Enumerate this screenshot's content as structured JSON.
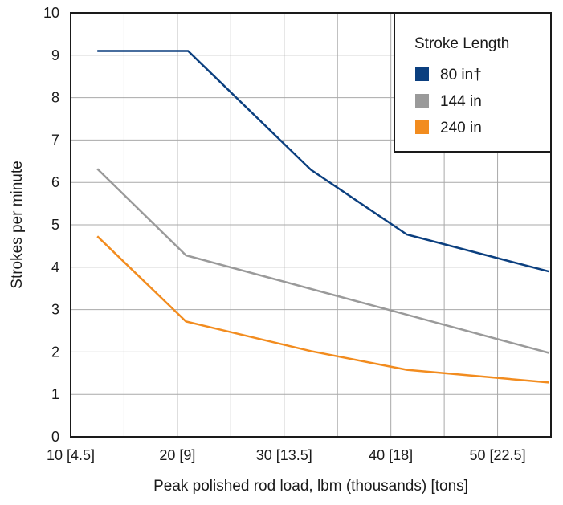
{
  "chart_data": {
    "type": "line",
    "title": "",
    "xlabel": "Peak polished rod load, lbm (thousands) [tons]",
    "ylabel": "Strokes per minute",
    "xlim": [
      10,
      55
    ],
    "ylim": [
      0,
      10
    ],
    "x_ticks": [
      {
        "value": 10,
        "label": "10 [4.5]"
      },
      {
        "value": 20,
        "label": "20 [9]"
      },
      {
        "value": 30,
        "label": "30 [13.5]"
      },
      {
        "value": 40,
        "label": "40 [18]"
      },
      {
        "value": 50,
        "label": "50 [22.5]"
      }
    ],
    "y_ticks": [
      0,
      1,
      2,
      3,
      4,
      5,
      6,
      7,
      8,
      9,
      10
    ],
    "grid": true,
    "legend": {
      "title": "Stroke Length",
      "position": "top-right"
    },
    "series": [
      {
        "name": "80 in†",
        "color": "#0b3f7f",
        "points": [
          [
            12.5,
            9.1
          ],
          [
            21,
            9.1
          ],
          [
            32.5,
            6.3
          ],
          [
            41.5,
            4.77
          ],
          [
            54.8,
            3.9
          ]
        ]
      },
      {
        "name": "144 in",
        "color": "#9a9a9a",
        "points": [
          [
            12.5,
            6.32
          ],
          [
            20.8,
            4.28
          ],
          [
            54.8,
            1.98
          ]
        ]
      },
      {
        "name": "240 in",
        "color": "#f28c1f",
        "points": [
          [
            12.5,
            4.73
          ],
          [
            20.8,
            2.72
          ],
          [
            32.5,
            2.02
          ],
          [
            41.5,
            1.58
          ],
          [
            54.8,
            1.28
          ]
        ]
      }
    ]
  }
}
